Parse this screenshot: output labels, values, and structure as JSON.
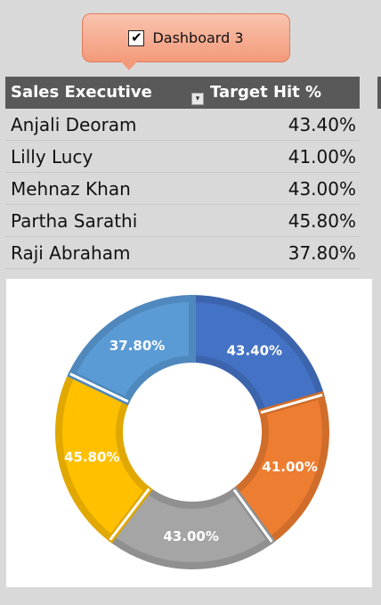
{
  "callout": {
    "label": "Dashboard 3",
    "checked": true
  },
  "table": {
    "headers": {
      "name": "Sales Executive",
      "value": "Target Hit  %"
    },
    "rows": [
      {
        "name": "Anjali Deoram",
        "value": "43.40%"
      },
      {
        "name": "Lilly Lucy",
        "value": "41.00%"
      },
      {
        "name": "Mehnaz Khan",
        "value": "43.00%"
      },
      {
        "name": "Partha Sarathi",
        "value": "45.80%"
      },
      {
        "name": "Raji Abraham",
        "value": "37.80%"
      }
    ]
  },
  "chart_data": {
    "type": "pie",
    "variant": "doughnut",
    "categories": [
      "Anjali Deoram",
      "Lilly Lucy",
      "Mehnaz Khan",
      "Partha Sarathi",
      "Raji Abraham"
    ],
    "values": [
      43.4,
      41.0,
      43.0,
      45.8,
      37.8
    ],
    "labels": [
      "43.40%",
      "41.00%",
      "43.00%",
      "45.80%",
      "37.80%"
    ],
    "colors": [
      "#4472c4",
      "#ed7d31",
      "#a5a5a5",
      "#ffc000",
      "#5b9bd5"
    ],
    "edge_colors": [
      "#3b64ad",
      "#d06d2a",
      "#909090",
      "#e0a800",
      "#4f88bd"
    ],
    "legend": "none"
  }
}
